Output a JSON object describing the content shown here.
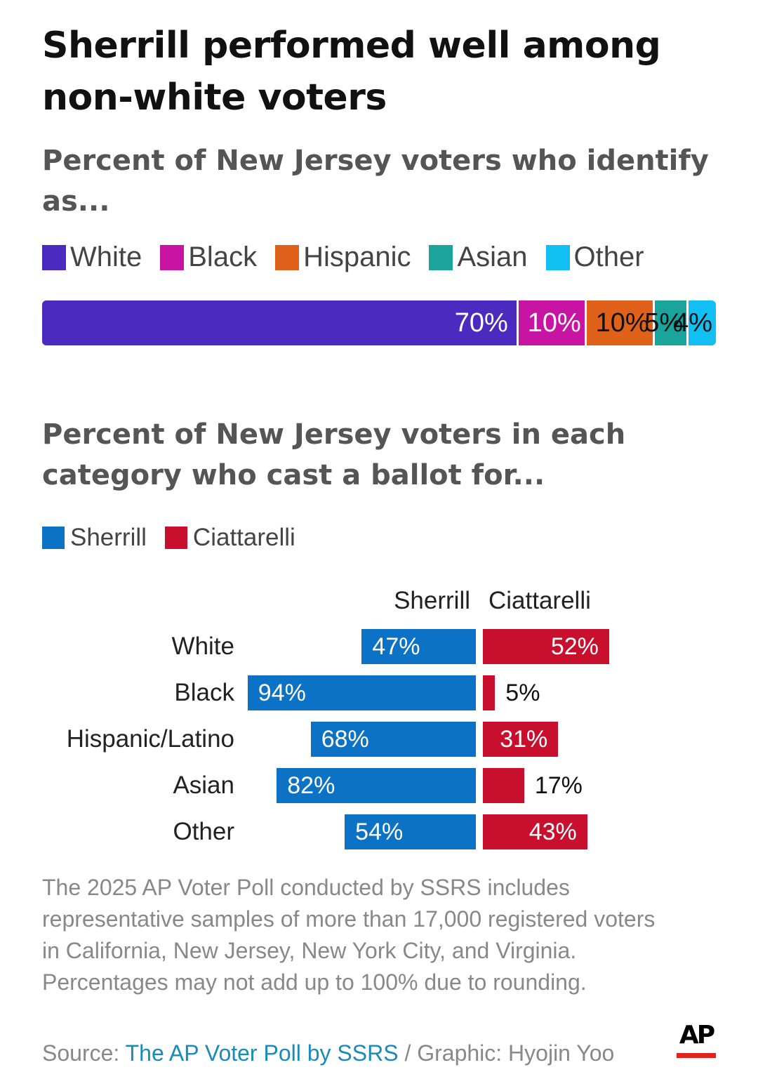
{
  "title": "Sherrill performed well among non-white voters",
  "chart_data": [
    {
      "type": "bar",
      "orientation": "horizontal-stacked",
      "subtitle": "Percent of New Jersey voters who identify as...",
      "categories": [
        "White",
        "Black",
        "Hispanic",
        "Asian",
        "Other"
      ],
      "values": [
        70,
        10,
        10,
        5,
        4
      ],
      "labels": [
        "70%",
        "10%",
        "10%",
        "5%",
        "4%"
      ],
      "colors": [
        "#4a2abf",
        "#c714a3",
        "#e0621a",
        "#1ba49b",
        "#12bff2"
      ],
      "label_colors": [
        "#ffffff",
        "#ffffff",
        "#111111",
        "#111111",
        "#111111"
      ],
      "legend": "top-left",
      "xlim": [
        0,
        100
      ]
    },
    {
      "type": "bar",
      "orientation": "horizontal-diverging",
      "subtitle": "Percent of New Jersey voters in each category who cast a ballot for...",
      "categories": [
        "White",
        "Black",
        "Hispanic/Latino",
        "Asian",
        "Other"
      ],
      "series": [
        {
          "name": "Sherrill",
          "values": [
            47,
            94,
            68,
            82,
            54
          ],
          "labels": [
            "47%",
            "94%",
            "68%",
            "82%",
            "54%"
          ],
          "color": "#0b72c5"
        },
        {
          "name": "Ciattarelli",
          "values": [
            52,
            5,
            31,
            17,
            43
          ],
          "labels": [
            "52%",
            "5%",
            "31%",
            "17%",
            "43%"
          ],
          "color": "#c8102e"
        }
      ],
      "column_headers": [
        "Sherrill",
        "Ciattarelli"
      ],
      "legend": "top-left",
      "xlim": [
        0,
        100
      ]
    }
  ],
  "note": "The 2025 AP Voter Poll conducted by SSRS includes representative samples of more than 17,000 registered voters in California, New Jersey, New York City, and Virginia. Percentages may not add up to 100% due to rounding.",
  "source": {
    "prefix": "Source: ",
    "link_text": "The AP Voter Poll by SSRS",
    "suffix": " / Graphic: Hyojin Yoo"
  },
  "logo": "AP"
}
